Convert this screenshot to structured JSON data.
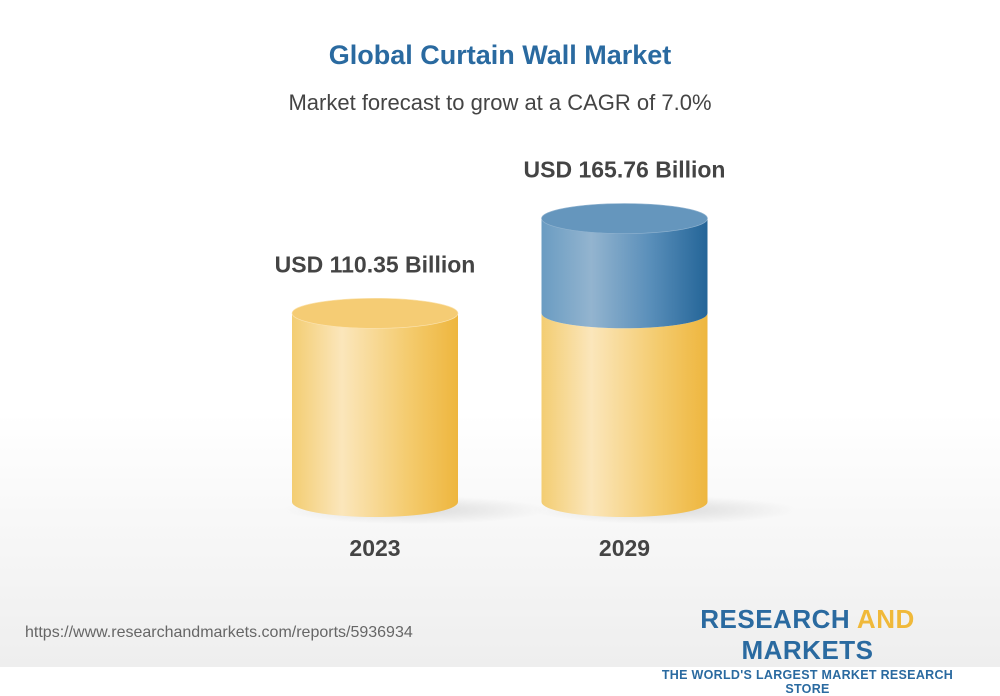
{
  "title": "Global Curtain Wall Market",
  "subtitle": "Market forecast to grow at a CAGR of 7.0%",
  "chart_data": {
    "type": "bar",
    "style": "3d-cylinder",
    "categories": [
      "2023",
      "2029"
    ],
    "values": [
      110.35,
      165.76
    ],
    "data_labels": [
      "USD 110.35 Billion",
      "USD 165.76 Billion"
    ],
    "unit": "USD Billion",
    "colors": {
      "base": "#f2c45e",
      "growth": "#2a6aa0"
    },
    "grid": false
  },
  "footer": {
    "url": "https://www.researchandmarkets.com/reports/5936934",
    "logo_word1": "RESEARCH",
    "logo_word2": "AND",
    "logo_word3": "MARKETS",
    "logo_tagline": "THE WORLD'S LARGEST MARKET RESEARCH STORE"
  }
}
